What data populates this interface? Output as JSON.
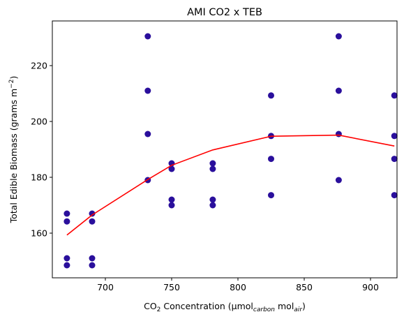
{
  "chart_data": {
    "type": "scatter",
    "title": "AMI CO2 x TEB",
    "xlabel": {
      "parts": [
        {
          "text": "CO"
        },
        {
          "text": "2",
          "style": "sub"
        },
        {
          "text": " Concentration (µmol"
        },
        {
          "text": "carbon",
          "style": "sub-italic"
        },
        {
          "text": " mol"
        },
        {
          "text": "air",
          "style": "sub-italic"
        },
        {
          "text": ")"
        }
      ]
    },
    "ylabel": {
      "parts": [
        {
          "text": "Total Edible Biomass (grams m"
        },
        {
          "text": "−2",
          "style": "sup"
        },
        {
          "text": ")"
        }
      ]
    },
    "xlim": [
      660,
      920
    ],
    "ylim": [
      144,
      236
    ],
    "x_ticks": [
      700,
      750,
      800,
      850,
      900
    ],
    "y_ticks": [
      160,
      180,
      200,
      220
    ],
    "grid": false,
    "series": [
      {
        "kind": "points",
        "color": "#2a0f9c",
        "points": [
          [
            671,
            167
          ],
          [
            671,
            164.2
          ],
          [
            671,
            151
          ],
          [
            671,
            148.5
          ],
          [
            690,
            167
          ],
          [
            690,
            164.2
          ],
          [
            690,
            151
          ],
          [
            690,
            148.5
          ],
          [
            732,
            230.5
          ],
          [
            732,
            211
          ],
          [
            732,
            195.5
          ],
          [
            732,
            179
          ],
          [
            750,
            185
          ],
          [
            750,
            183
          ],
          [
            750,
            172
          ],
          [
            750,
            170
          ],
          [
            781,
            185
          ],
          [
            781,
            183
          ],
          [
            781,
            172
          ],
          [
            781,
            170
          ],
          [
            825,
            209.3
          ],
          [
            825,
            194.8
          ],
          [
            825,
            186.6
          ],
          [
            825,
            173.6
          ],
          [
            876,
            230.5
          ],
          [
            876,
            211
          ],
          [
            876,
            195.5
          ],
          [
            876,
            179
          ],
          [
            918,
            209.3
          ],
          [
            918,
            194.8
          ],
          [
            918,
            186.6
          ],
          [
            918,
            173.6
          ]
        ]
      },
      {
        "kind": "line",
        "color": "#ff0000",
        "points": [
          [
            671,
            159.3
          ],
          [
            690,
            166.5
          ],
          [
            732,
            179.2
          ],
          [
            750,
            184.3
          ],
          [
            781,
            189.8
          ],
          [
            825,
            194.7
          ],
          [
            876,
            195.1
          ],
          [
            918,
            191.2
          ]
        ]
      }
    ]
  }
}
